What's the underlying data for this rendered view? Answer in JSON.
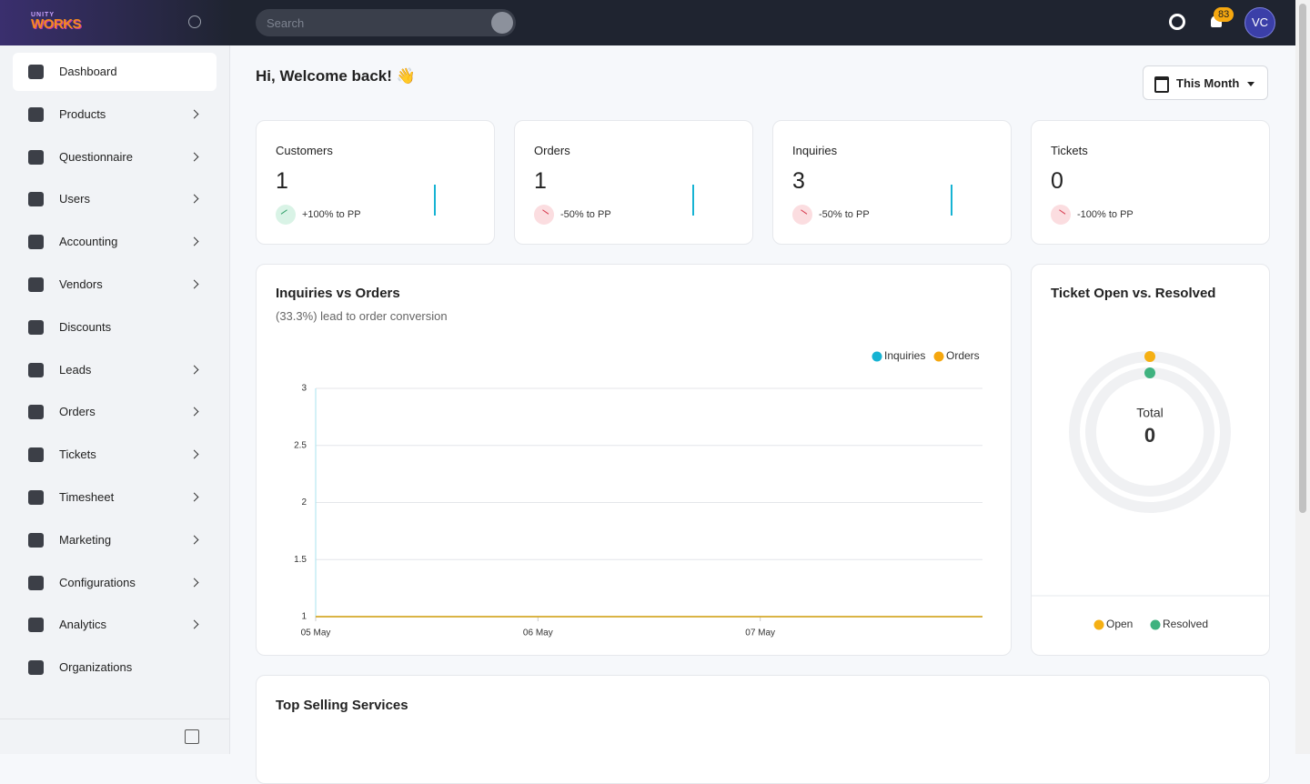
{
  "header": {
    "logo_top": "UNITY",
    "logo": "WORKS",
    "search_placeholder": "Search",
    "notification_count": "83",
    "avatar": "VC"
  },
  "sidebar": {
    "active": 0,
    "items": [
      {
        "label": "Dashboard",
        "has_submenu": false
      },
      {
        "label": "Products",
        "has_submenu": true
      },
      {
        "label": "Questionnaire",
        "has_submenu": true
      },
      {
        "label": "Users",
        "has_submenu": true
      },
      {
        "label": "Accounting",
        "has_submenu": true
      },
      {
        "label": "Vendors",
        "has_submenu": true
      },
      {
        "label": "Discounts",
        "has_submenu": false
      },
      {
        "label": "Leads",
        "has_submenu": true
      },
      {
        "label": "Orders",
        "has_submenu": true
      },
      {
        "label": "Tickets",
        "has_submenu": true
      },
      {
        "label": "Timesheet",
        "has_submenu": true
      },
      {
        "label": "Marketing",
        "has_submenu": true
      },
      {
        "label": "Configurations",
        "has_submenu": true
      },
      {
        "label": "Analytics",
        "has_submenu": true
      },
      {
        "label": "Organizations",
        "has_submenu": false
      }
    ]
  },
  "page": {
    "greeting": "Hi, Welcome back! 👋",
    "period": "This Month"
  },
  "stats": [
    {
      "label": "Customers",
      "value": "1",
      "change": "+100%",
      "suffix": "to PP",
      "trend": "up"
    },
    {
      "label": "Orders",
      "value": "1",
      "change": "-50%",
      "suffix": "to PP",
      "trend": "down"
    },
    {
      "label": "Inquiries",
      "value": "3",
      "change": "-50%",
      "suffix": "to PP",
      "trend": "down"
    },
    {
      "label": "Tickets",
      "value": "0",
      "change": "-100%",
      "suffix": "to PP",
      "trend": "down"
    }
  ],
  "chart_data": {
    "type": "line",
    "title": "Inquiries vs Orders",
    "subtitle": "(33.3%) lead to order conversion",
    "categories": [
      "05 May",
      "06 May",
      "07 May",
      null
    ],
    "series": [
      {
        "name": "Inquiries",
        "color": "#16b3d3",
        "values": [
          1,
          1,
          1,
          1
        ]
      },
      {
        "name": "Orders",
        "color": "#f5a70f",
        "values": [
          1,
          1,
          1,
          1
        ]
      }
    ],
    "ylim": [
      1,
      3
    ],
    "yticks": [
      1,
      1.5,
      2,
      2.5,
      3
    ],
    "grid": true,
    "legend": "top-right"
  },
  "ticket_chart": {
    "type": "donut",
    "title": "Ticket Open vs. Resolved",
    "center_label": "Total",
    "total": "0",
    "series": [
      {
        "name": "Open",
        "color": "#f5b014",
        "values": [
          0
        ]
      },
      {
        "name": "Resolved",
        "color": "#3fb27f",
        "values": [
          0
        ]
      }
    ]
  },
  "top_selling": {
    "title": "Top Selling Services"
  }
}
